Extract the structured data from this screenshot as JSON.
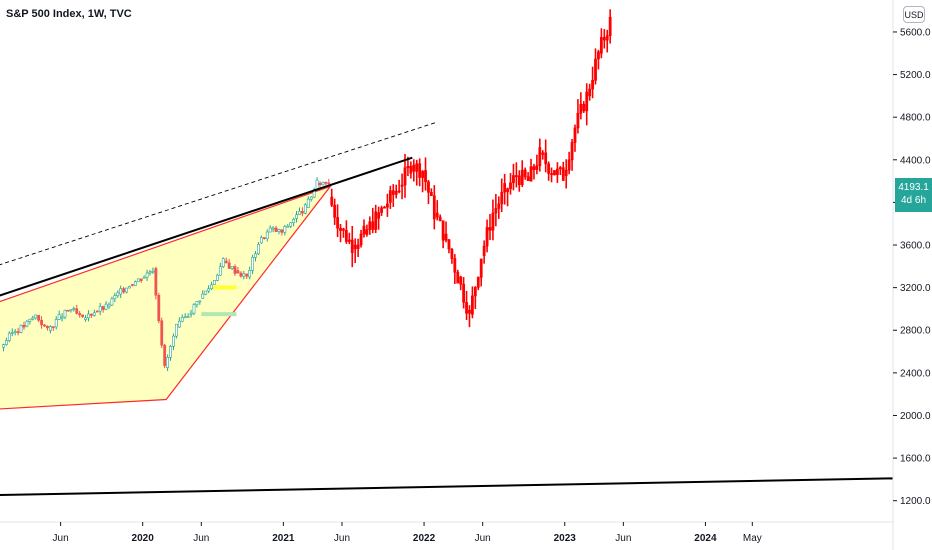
{
  "header": {
    "title": "S&P 500 Index, 1W, TVC",
    "currency": "USD"
  },
  "last_price": {
    "value": "4193.1",
    "countdown": "4d 6h",
    "color": "#26a69a"
  },
  "colors": {
    "candle_up": "#26a69a",
    "candle_down": "#ef5350",
    "projection": "#ff0000",
    "wedge_fill": "#ffffc0",
    "wedge_edge": "#ff2a2a",
    "trendline": "#000000",
    "highlight_yellow": "#ffff33",
    "highlight_green": "#b2e6b2"
  },
  "chart_data": {
    "type": "candlestick",
    "y_axis": {
      "position": "right",
      "ticks": [
        "5600.0",
        "5200.0",
        "4800.0",
        "4400.0",
        "4000.0",
        "3600.0",
        "3200.0",
        "2800.0",
        "2400.0",
        "2000.0",
        "1600.0",
        "1200.0"
      ],
      "range": [
        1000,
        5900
      ]
    },
    "x_axis": {
      "ticks": [
        {
          "label": "Jun",
          "bold": false,
          "date": "2019-06"
        },
        {
          "label": "2020",
          "bold": true,
          "date": "2020-01"
        },
        {
          "label": "Jun",
          "bold": false,
          "date": "2020-06"
        },
        {
          "label": "2021",
          "bold": true,
          "date": "2021-01"
        },
        {
          "label": "Jun",
          "bold": false,
          "date": "2021-06"
        },
        {
          "label": "2022",
          "bold": true,
          "date": "2022-01"
        },
        {
          "label": "Jun",
          "bold": false,
          "date": "2022-06"
        },
        {
          "label": "2023",
          "bold": true,
          "date": "2023-01"
        },
        {
          "label": "Jun",
          "bold": false,
          "date": "2023-06"
        },
        {
          "label": "2024",
          "bold": true,
          "date": "2024-01"
        },
        {
          "label": "May",
          "bold": false,
          "date": "2024-05"
        }
      ],
      "range": [
        "2019-01",
        "2025-05"
      ]
    },
    "series": [
      {
        "kind": "history",
        "points": [
          [
            "2019-01",
            2640
          ],
          [
            "2019-02",
            2780
          ],
          [
            "2019-03",
            2840
          ],
          [
            "2019-04",
            2940
          ],
          [
            "2019-05",
            2800
          ],
          [
            "2019-06",
            2920
          ],
          [
            "2019-07",
            3000
          ],
          [
            "2019-08",
            2900
          ],
          [
            "2019-09",
            2980
          ],
          [
            "2019-10",
            3020
          ],
          [
            "2019-11",
            3140
          ],
          [
            "2019-12",
            3230
          ],
          [
            "2020-01",
            3290
          ],
          [
            "2020-02",
            3380
          ],
          [
            "2020-03",
            2450
          ],
          [
            "2020-04",
            2830
          ],
          [
            "2020-05",
            2950
          ],
          [
            "2020-06",
            3100
          ],
          [
            "2020-07",
            3230
          ],
          [
            "2020-08",
            3450
          ],
          [
            "2020-09",
            3360
          ],
          [
            "2020-10",
            3300
          ],
          [
            "2020-11",
            3620
          ],
          [
            "2020-12",
            3750
          ],
          [
            "2021-01",
            3720
          ],
          [
            "2021-02",
            3850
          ],
          [
            "2021-03",
            3950
          ],
          [
            "2021-04",
            4180
          ],
          [
            "2021-05",
            4200
          ]
        ]
      },
      {
        "kind": "projection",
        "points": [
          [
            "2021-05",
            4050
          ],
          [
            "2021-06",
            3750
          ],
          [
            "2021-07",
            3600
          ],
          [
            "2021-08",
            3700
          ],
          [
            "2021-09",
            3850
          ],
          [
            "2021-10",
            4000
          ],
          [
            "2021-11",
            4150
          ],
          [
            "2021-12",
            4350
          ],
          [
            "2022-01",
            4300
          ],
          [
            "2022-02",
            3900
          ],
          [
            "2022-03",
            3650
          ],
          [
            "2022-04",
            3300
          ],
          [
            "2022-05",
            2950
          ],
          [
            "2022-06",
            3500
          ],
          [
            "2022-07",
            3900
          ],
          [
            "2022-08",
            4100
          ],
          [
            "2022-09",
            4250
          ],
          [
            "2022-10",
            4200
          ],
          [
            "2022-11",
            4450
          ],
          [
            "2022-12",
            4300
          ],
          [
            "2023-01",
            4250
          ],
          [
            "2023-02",
            4700
          ],
          [
            "2023-03",
            5000
          ],
          [
            "2023-04",
            5400
          ],
          [
            "2023-05",
            5700
          ]
        ]
      }
    ],
    "annotations": [
      {
        "type": "wedge",
        "points": [
          [
            "2018-11",
            3000
          ],
          [
            "2021-05",
            4150
          ],
          [
            "2020-03",
            2150
          ],
          [
            "2018-11",
            2050
          ]
        ]
      },
      {
        "type": "trendline",
        "style": "solid",
        "from": [
          "2018-11",
          3060
        ],
        "to": [
          "2021-12",
          4420
        ]
      },
      {
        "type": "trendline",
        "style": "dashed",
        "from": [
          "2018-11",
          3350
        ],
        "to": [
          "2022-02",
          4750
        ]
      },
      {
        "type": "trendline",
        "style": "solid",
        "from": [
          "2018-11",
          1250
        ],
        "to": [
          "2025-05",
          1410
        ]
      },
      {
        "type": "highlight",
        "color": "yellow",
        "from": [
          "2020-07",
          3220
        ],
        "to": [
          "2020-09",
          3200
        ]
      },
      {
        "type": "highlight",
        "color": "green",
        "from": [
          "2020-06",
          2970
        ],
        "to": [
          "2020-09",
          2940
        ]
      }
    ]
  }
}
